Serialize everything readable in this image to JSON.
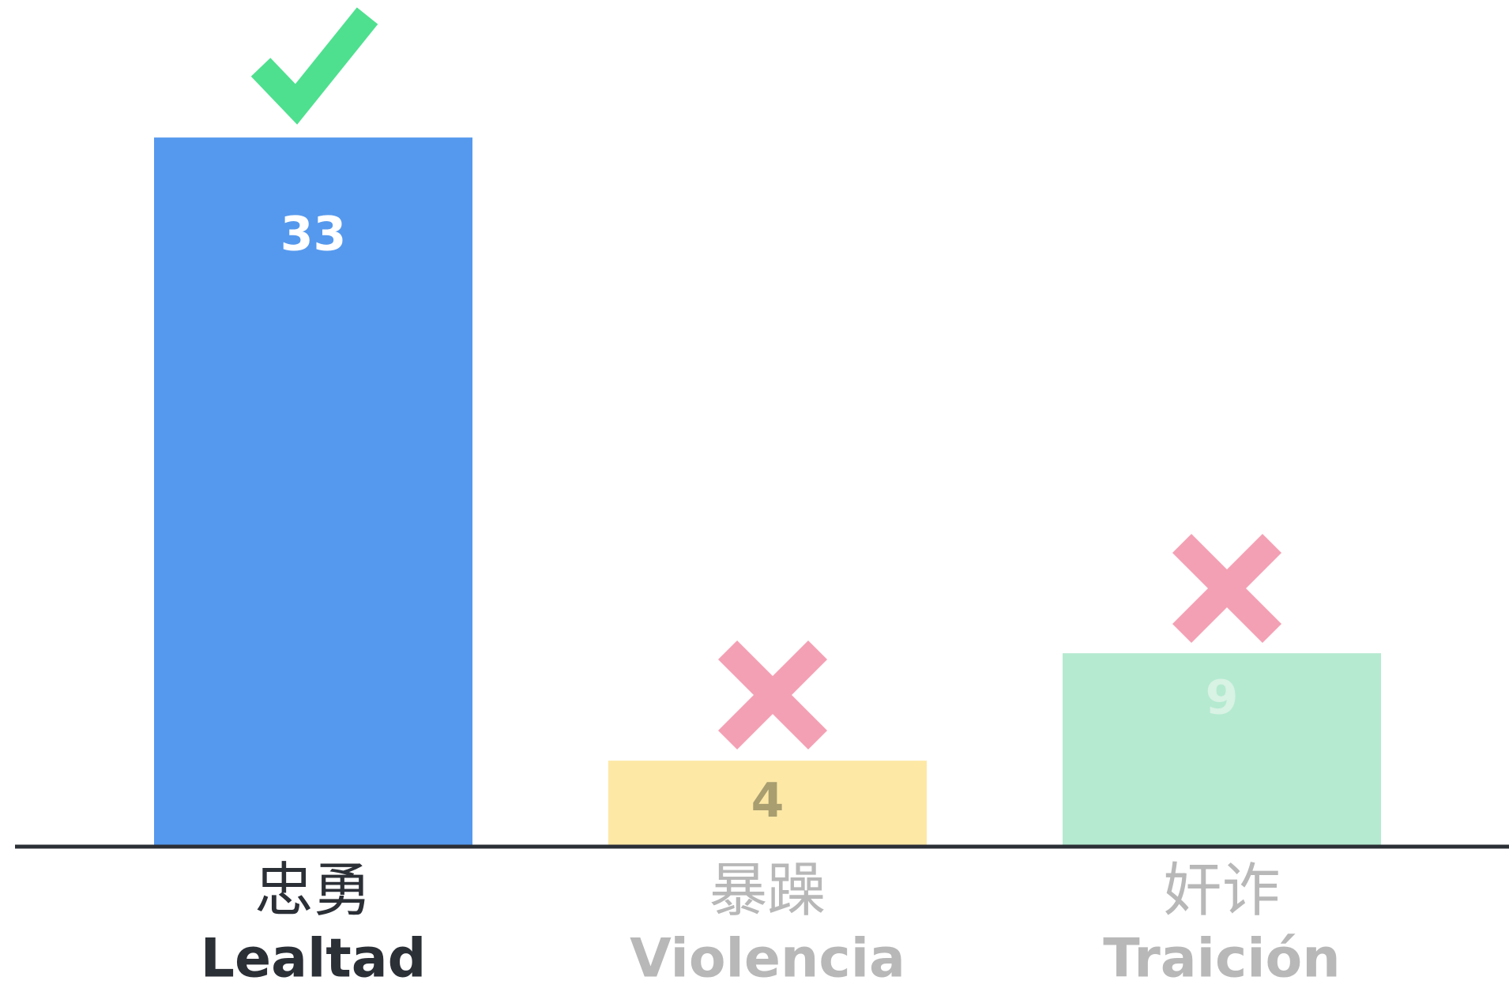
{
  "chart_data": {
    "type": "bar",
    "categories": [
      {
        "zh": "忠勇",
        "es": "Lealtad"
      },
      {
        "zh": "暴躁",
        "es": "Violencia"
      },
      {
        "zh": "奸诈",
        "es": "Traición"
      }
    ],
    "values": [
      33,
      4,
      9
    ],
    "colors": [
      "#5599ee",
      "#fde8a6",
      "#b5ead0"
    ],
    "ylim": [
      0,
      39.4
    ]
  }
}
